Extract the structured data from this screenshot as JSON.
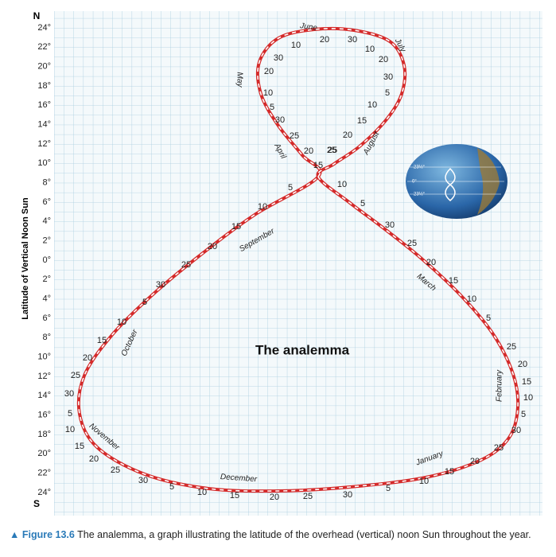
{
  "axis": {
    "top": "N",
    "bottom": "S",
    "title": "Latitude of Vertical Noon Sun",
    "labels": [
      "24°",
      "22°",
      "20°",
      "18°",
      "16°",
      "14°",
      "12°",
      "10°",
      "8°",
      "6°",
      "4°",
      "2°",
      "0°",
      "2°",
      "4°",
      "6°",
      "8°",
      "10°",
      "12°",
      "14°",
      "16°",
      "18°",
      "20°",
      "22°",
      "24°"
    ]
  },
  "title": "The analemma",
  "months": [
    "June",
    "July",
    "May",
    "August",
    "April",
    "September",
    "March",
    "October",
    "February",
    "November",
    "December",
    "January"
  ],
  "day_labels": [
    "10",
    "20",
    "30",
    "10",
    "20",
    "30",
    "5",
    "10",
    "15",
    "20",
    "25",
    "15",
    "10",
    "5",
    "30",
    "20",
    "10",
    "5",
    "30",
    "25",
    "20",
    "25",
    "5",
    "10",
    "15",
    "20",
    "25",
    "30",
    "5",
    "10",
    "15",
    "20",
    "25",
    "30",
    "5",
    "10",
    "15",
    "20",
    "25",
    "30",
    "5",
    "10",
    "15",
    "20",
    "25",
    "30",
    "5",
    "10",
    "15",
    "20",
    "25",
    "30",
    "5",
    "10",
    "15",
    "20",
    "25",
    "5",
    "10",
    "15",
    "20",
    "25",
    "30"
  ],
  "globe_labels": [
    "23½°",
    "0°",
    "23½°"
  ],
  "caption": {
    "figure": "Figure 13.6",
    "text": "The analemma, a graph illustrating the latitude of the overhead (vertical) noon Sun throughout the year."
  }
}
